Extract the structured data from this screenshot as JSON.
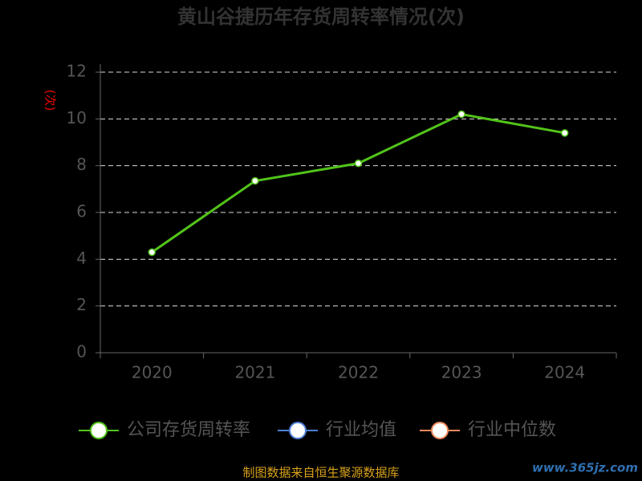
{
  "chart_data": {
    "type": "line",
    "title": "黄山谷捷历年存货周转率情况(次)",
    "y_label": "(次)",
    "categories": [
      "2020",
      "2021",
      "2022",
      "2023",
      "2024"
    ],
    "series": [
      {
        "name": "公司存货周转率",
        "color": "#52c41a",
        "values": [
          4.3,
          7.35,
          8.1,
          10.2,
          9.4
        ]
      },
      {
        "name": "行业均值",
        "color": "#4e7fd6",
        "values": [
          null,
          null,
          null,
          null,
          null
        ]
      },
      {
        "name": "行业中位数",
        "color": "#f08a5d",
        "values": [
          null,
          null,
          null,
          null,
          null
        ]
      }
    ],
    "ylim": [
      0,
      12
    ],
    "yticks": [
      0,
      2,
      4,
      6,
      8,
      10,
      12
    ],
    "grid": true,
    "source": "制图数据来自恒生聚源数据库",
    "watermark": "www.365jz.com"
  }
}
